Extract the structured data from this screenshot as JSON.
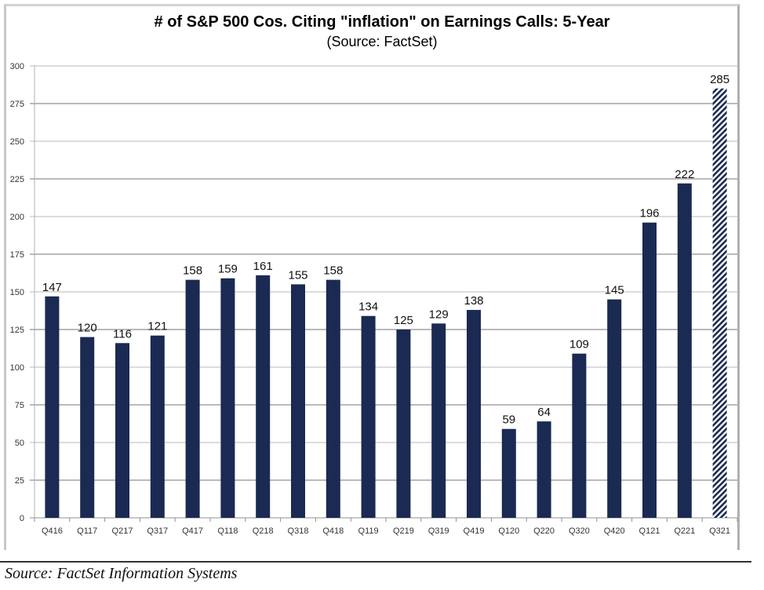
{
  "chart_data": {
    "type": "bar",
    "title": "# of S&P 500 Cos. Citing \"inflation\" on Earnings Calls: 5-Year",
    "subtitle": "(Source: FactSet)",
    "xlabel": "",
    "ylabel": "",
    "ylim": [
      0,
      300
    ],
    "yticks": [
      0,
      25,
      50,
      75,
      100,
      125,
      150,
      175,
      200,
      225,
      250,
      275,
      300
    ],
    "grid": true,
    "categories": [
      "Q416",
      "Q117",
      "Q217",
      "Q317",
      "Q417",
      "Q118",
      "Q218",
      "Q318",
      "Q418",
      "Q119",
      "Q219",
      "Q319",
      "Q419",
      "Q120",
      "Q220",
      "Q320",
      "Q420",
      "Q121",
      "Q221",
      "Q321"
    ],
    "values": [
      147,
      120,
      116,
      121,
      158,
      159,
      161,
      155,
      158,
      134,
      125,
      129,
      138,
      59,
      64,
      109,
      145,
      196,
      222,
      285
    ],
    "highlighted": [
      "Q321"
    ],
    "bar_color": "#1a2a52",
    "highlight_pattern": "hatched"
  },
  "footer": {
    "source": "Source: FactSet Information Systems"
  }
}
